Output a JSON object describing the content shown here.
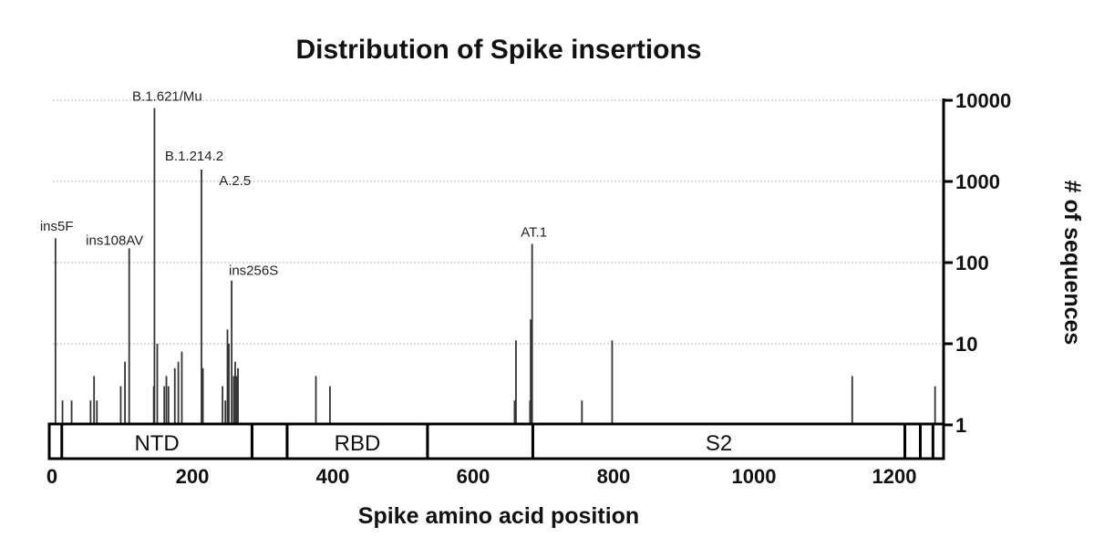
{
  "chart_data": {
    "type": "bar",
    "title": "Distribution of Spike insertions",
    "xlabel": "Spike amino acid position",
    "ylabel": "# of sequences",
    "xlim": [
      0,
      1273
    ],
    "ylim": [
      1,
      10000
    ],
    "yscale": "log",
    "y_axis_side": "right",
    "grid": "horizontal dotted",
    "x_ticks": [
      0,
      200,
      400,
      600,
      800,
      1000,
      1200
    ],
    "y_ticks": [
      1,
      10,
      100,
      1000,
      10000
    ],
    "bar_color": "#333333",
    "points": [
      {
        "x": 5,
        "y": 200
      },
      {
        "x": 15,
        "y": 2
      },
      {
        "x": 28,
        "y": 2
      },
      {
        "x": 55,
        "y": 2
      },
      {
        "x": 60,
        "y": 4
      },
      {
        "x": 64,
        "y": 2
      },
      {
        "x": 98,
        "y": 3
      },
      {
        "x": 104,
        "y": 6
      },
      {
        "x": 110,
        "y": 150
      },
      {
        "x": 145,
        "y": 3
      },
      {
        "x": 146,
        "y": 8000
      },
      {
        "x": 150,
        "y": 10
      },
      {
        "x": 160,
        "y": 3
      },
      {
        "x": 163,
        "y": 4
      },
      {
        "x": 166,
        "y": 3
      },
      {
        "x": 175,
        "y": 5
      },
      {
        "x": 180,
        "y": 6
      },
      {
        "x": 185,
        "y": 8
      },
      {
        "x": 213,
        "y": 1400
      },
      {
        "x": 215,
        "y": 5
      },
      {
        "x": 243,
        "y": 3
      },
      {
        "x": 247,
        "y": 2
      },
      {
        "x": 250,
        "y": 15
      },
      {
        "x": 252,
        "y": 10
      },
      {
        "x": 256,
        "y": 60
      },
      {
        "x": 259,
        "y": 4
      },
      {
        "x": 261,
        "y": 6
      },
      {
        "x": 263,
        "y": 4
      },
      {
        "x": 265,
        "y": 5
      },
      {
        "x": 376,
        "y": 4
      },
      {
        "x": 396,
        "y": 3
      },
      {
        "x": 659,
        "y": 2
      },
      {
        "x": 661,
        "y": 11
      },
      {
        "x": 681,
        "y": 2
      },
      {
        "x": 682,
        "y": 20
      },
      {
        "x": 684,
        "y": 170
      },
      {
        "x": 755,
        "y": 2
      },
      {
        "x": 798,
        "y": 11
      },
      {
        "x": 1140,
        "y": 4
      },
      {
        "x": 1258,
        "y": 3
      }
    ],
    "annotations": [
      {
        "text": "ins5F",
        "x": 5,
        "y": 200
      },
      {
        "text": "ins108AV",
        "x": 110,
        "y": 150
      },
      {
        "text": "B.1.621/Mu",
        "x": 146,
        "y": 8000
      },
      {
        "text": "B.1.214.2",
        "x": 213,
        "y": 1400
      },
      {
        "text": "A.2.5",
        "x": 214,
        "y": 700
      },
      {
        "text": "ins256S",
        "x": 256,
        "y": 60
      },
      {
        "text": "AT.1",
        "x": 684,
        "y": 170
      }
    ],
    "domains": [
      {
        "label": "NTD",
        "start": 14,
        "end": 285
      },
      {
        "label": "",
        "start": 285,
        "end": 335
      },
      {
        "label": "RBD",
        "start": 335,
        "end": 535
      },
      {
        "label": "",
        "start": 535,
        "end": 685
      },
      {
        "label": "S2",
        "start": 685,
        "end": 1215
      },
      {
        "label": "",
        "start": 1215,
        "end": 1237
      },
      {
        "label": "",
        "start": 1237,
        "end": 1255
      }
    ]
  }
}
